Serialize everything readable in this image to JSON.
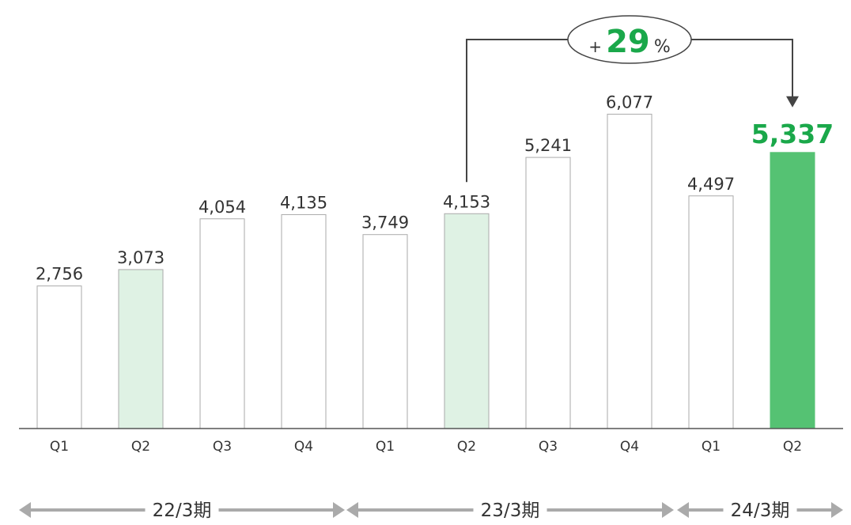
{
  "chart_data": {
    "type": "bar",
    "categories": [
      "Q1",
      "Q2",
      "Q3",
      "Q4",
      "Q1",
      "Q2",
      "Q3",
      "Q4",
      "Q1",
      "Q2"
    ],
    "values": [
      2756,
      3073,
      4054,
      4135,
      3749,
      4153,
      5241,
      6077,
      4497,
      5337
    ],
    "value_labels": [
      "2,756",
      "3,073",
      "4,054",
      "4,135",
      "3,749",
      "4,153",
      "5,241",
      "6,077",
      "4,497",
      "5,337"
    ],
    "periods": [
      {
        "label": "22/3期",
        "start": 0,
        "end": 3
      },
      {
        "label": "23/3期",
        "start": 4,
        "end": 7
      },
      {
        "label": "24/3期",
        "start": 8,
        "end": 9
      }
    ],
    "bar_styles": [
      "plain",
      "light",
      "plain",
      "plain",
      "plain",
      "light",
      "plain",
      "plain",
      "plain",
      "highlight"
    ],
    "growth": {
      "prefix": "+",
      "value": "29",
      "suffix": "%",
      "from_index": 5,
      "to_index": 9
    },
    "ylim": [
      0,
      7000
    ],
    "title": "",
    "xlabel": "",
    "ylabel": "",
    "grid": false,
    "colors": {
      "plain_fill": "#ffffff",
      "light_fill": "#dff2e4",
      "highlight_fill": "#55c273",
      "highlight_text": "#1aa84a",
      "bar_stroke": "#aaaaaa",
      "axis": "#555555",
      "arrow": "#444444",
      "period_arrow": "#aaaaaa"
    }
  }
}
